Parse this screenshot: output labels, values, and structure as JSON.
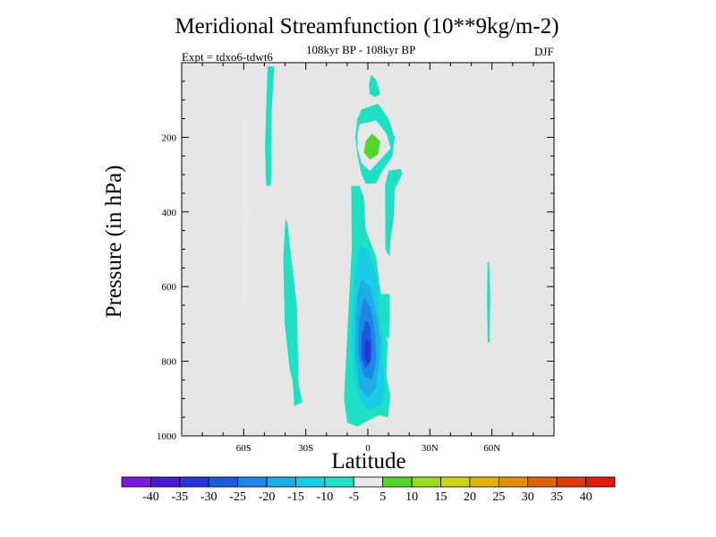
{
  "chart_data": {
    "type": "contour",
    "title": "Meridional Streamfunction (10**9kg/m-2)",
    "subtitle": "108kyr BP - 108kyr BP",
    "experiment_label": "Expt = tdxo6-tdwt6",
    "season": "DJF",
    "xlabel": "Latitude",
    "ylabel": "Pressure (in hPa)",
    "xlim": [
      -90,
      90
    ],
    "ylim": [
      1000,
      0
    ],
    "y_axis_inverted": true,
    "x_ticks": [
      {
        "value": -60,
        "label": "60S"
      },
      {
        "value": -30,
        "label": "30S"
      },
      {
        "value": 0,
        "label": "0"
      },
      {
        "value": 30,
        "label": "30N"
      },
      {
        "value": 60,
        "label": "60N"
      }
    ],
    "y_ticks": [
      {
        "value": 200,
        "label": "200"
      },
      {
        "value": 400,
        "label": "400"
      },
      {
        "value": 600,
        "label": "600"
      },
      {
        "value": 800,
        "label": "800"
      },
      {
        "value": 1000,
        "label": "1000"
      }
    ],
    "colorbar": {
      "levels": [
        -40,
        -35,
        -30,
        -25,
        -20,
        -15,
        -10,
        -5,
        5,
        10,
        15,
        20,
        25,
        30,
        35,
        40
      ],
      "colors": [
        "#7d18e0",
        "#4a1ad6",
        "#2535d9",
        "#1c5ae0",
        "#1d86e6",
        "#1daee6",
        "#19cde8",
        "#1ee0c4",
        "#e8e8e8",
        "#52d62a",
        "#9ddc1a",
        "#cdd614",
        "#e1b60a",
        "#e38f08",
        "#e06407",
        "#df3a06",
        "#df1a06"
      ]
    },
    "regions": [
      {
        "name": "sh-positive-band",
        "level": 5,
        "points": [
          [
            -60.4,
            10
          ],
          [
            -59.6,
            10
          ],
          [
            -59.8,
            60
          ],
          [
            -58.3,
            160
          ],
          [
            -57.8,
            240
          ],
          [
            -57.7,
            420
          ],
          [
            -58.1,
            600
          ],
          [
            -58.6,
            680
          ],
          [
            -58.5,
            775
          ],
          [
            -59.3,
            806
          ],
          [
            -60.5,
            804
          ],
          [
            -60.6,
            700
          ],
          [
            -60.4,
            500
          ],
          [
            -60.6,
            200
          ],
          [
            -60.5,
            100
          ]
        ]
      },
      {
        "name": "sh-negative-column",
        "level": -5,
        "points": [
          [
            -48.5,
            10
          ],
          [
            -45.2,
            10
          ],
          [
            -46.5,
            130
          ],
          [
            -46.6,
            290
          ],
          [
            -47,
            330
          ],
          [
            -49.2,
            330
          ],
          [
            -49.7,
            230
          ],
          [
            -49.2,
            130
          ]
        ]
      },
      {
        "name": "far-sh-small-positive",
        "level": 5,
        "points": [
          [
            -71.2,
            580
          ],
          [
            -70.8,
            580
          ],
          [
            -70.6,
            620
          ],
          [
            -70.8,
            665
          ],
          [
            -71.1,
            665
          ],
          [
            -71.4,
            620
          ]
        ]
      },
      {
        "name": "sh-lower-negative-band",
        "level": -5,
        "points": [
          [
            -39.8,
            418
          ],
          [
            -38.9,
            428
          ],
          [
            -37.5,
            500
          ],
          [
            -34.3,
            650
          ],
          [
            -33.5,
            860
          ],
          [
            -31.7,
            910
          ],
          [
            -35.6,
            920
          ],
          [
            -36.2,
            860
          ],
          [
            -37.8,
            820
          ],
          [
            -40.2,
            700
          ],
          [
            -40.9,
            520
          ]
        ]
      },
      {
        "name": "upper-cell-outer",
        "level": -5,
        "points": [
          [
            -3,
            125
          ],
          [
            5,
            110
          ],
          [
            10,
            150
          ],
          [
            13,
            200
          ],
          [
            12,
            250
          ],
          [
            7,
            290
          ],
          [
            4,
            323
          ],
          [
            -1,
            325
          ],
          [
            -3,
            300
          ],
          [
            -5,
            250
          ],
          [
            -6,
            200
          ],
          [
            -5,
            150
          ]
        ]
      },
      {
        "name": "upper-cell-positive",
        "level": 5,
        "points": [
          [
            -4,
            165
          ],
          [
            4,
            155
          ],
          [
            9,
            190
          ],
          [
            11,
            230
          ],
          [
            6,
            260
          ],
          [
            1,
            290
          ],
          [
            -3,
            270
          ],
          [
            -5,
            230
          ],
          [
            -5,
            190
          ]
        ]
      },
      {
        "name": "upper-cell-core",
        "level": 10,
        "points": [
          [
            2,
            190
          ],
          [
            6,
            210
          ],
          [
            5,
            245
          ],
          [
            1,
            260
          ],
          [
            -2,
            240
          ],
          [
            -1,
            210
          ]
        ]
      },
      {
        "name": "small-top-blob",
        "level": -5,
        "points": [
          [
            1.5,
            33
          ],
          [
            4,
            45
          ],
          [
            6,
            85
          ],
          [
            3.5,
            92
          ],
          [
            1,
            85
          ],
          [
            0.5,
            60
          ]
        ]
      },
      {
        "name": "main-negative-column",
        "level": -5,
        "points": [
          [
            -8,
            330
          ],
          [
            -4,
            330
          ],
          [
            -2,
            360
          ],
          [
            -1,
            450
          ],
          [
            4,
            520
          ],
          [
            6.5,
            630
          ],
          [
            8,
            700
          ],
          [
            9.5,
            750
          ],
          [
            9,
            840
          ],
          [
            10.8,
            890
          ],
          [
            9.8,
            950
          ],
          [
            5,
            945
          ],
          [
            -5,
            975
          ],
          [
            -10,
            965
          ],
          [
            -11.5,
            900
          ],
          [
            -10.6,
            800
          ],
          [
            -9.2,
            650
          ],
          [
            -7.8,
            500
          ]
        ]
      },
      {
        "name": "main-negative-inner-1",
        "level": -10,
        "points": [
          [
            -4,
            490
          ],
          [
            0,
            500
          ],
          [
            3.5,
            560
          ],
          [
            6,
            640
          ],
          [
            7.5,
            720
          ],
          [
            7,
            800
          ],
          [
            8.5,
            870
          ],
          [
            6,
            920
          ],
          [
            0,
            930
          ],
          [
            -4,
            900
          ],
          [
            -7,
            830
          ],
          [
            -7.5,
            700
          ],
          [
            -6.5,
            580
          ]
        ]
      },
      {
        "name": "main-negative-inner-2",
        "level": -15,
        "points": [
          [
            -3,
            580
          ],
          [
            1,
            600
          ],
          [
            4,
            670
          ],
          [
            6,
            740
          ],
          [
            5,
            820
          ],
          [
            4,
            870
          ],
          [
            0,
            900
          ],
          [
            -4,
            870
          ],
          [
            -6,
            780
          ],
          [
            -6,
            680
          ],
          [
            -5,
            620
          ]
        ]
      },
      {
        "name": "main-negative-inner-3",
        "level": -20,
        "points": [
          [
            -2,
            630
          ],
          [
            1,
            650
          ],
          [
            3.5,
            720
          ],
          [
            4,
            800
          ],
          [
            2,
            850
          ],
          [
            -2,
            840
          ],
          [
            -4.5,
            780
          ],
          [
            -4.5,
            700
          ]
        ]
      },
      {
        "name": "main-negative-inner-4",
        "level": -25,
        "points": [
          [
            -1,
            690
          ],
          [
            1,
            700
          ],
          [
            2,
            760
          ],
          [
            1.5,
            800
          ],
          [
            -1,
            820
          ],
          [
            -3,
            790
          ],
          [
            -3,
            730
          ]
        ]
      },
      {
        "name": "main-negative-core",
        "level": -30,
        "points": [
          [
            -1,
            740
          ],
          [
            1,
            750
          ],
          [
            1.2,
            790
          ],
          [
            0,
            810
          ],
          [
            -1.5,
            790
          ],
          [
            -1.5,
            755
          ]
        ]
      },
      {
        "name": "nh-negative-column",
        "level": -5,
        "points": [
          [
            10,
            290
          ],
          [
            16,
            285
          ],
          [
            16.5,
            300
          ],
          [
            13,
            340
          ],
          [
            12.5,
            420
          ],
          [
            11,
            470
          ],
          [
            10.5,
            520
          ],
          [
            8.5,
            500
          ],
          [
            8.4,
            400
          ],
          [
            8.3,
            330
          ]
        ]
      },
      {
        "name": "nh-high-small-negative",
        "level": -5,
        "points": [
          [
            57.9,
            535
          ],
          [
            58.6,
            535
          ],
          [
            59.2,
            620
          ],
          [
            58.8,
            750
          ],
          [
            58,
            750
          ],
          [
            57.6,
            640
          ]
        ]
      },
      {
        "name": "near-equator-negative",
        "level": -5,
        "points": [
          [
            5,
            620
          ],
          [
            10.5,
            620
          ],
          [
            10.3,
            740
          ],
          [
            6,
            720
          ]
        ]
      }
    ]
  }
}
